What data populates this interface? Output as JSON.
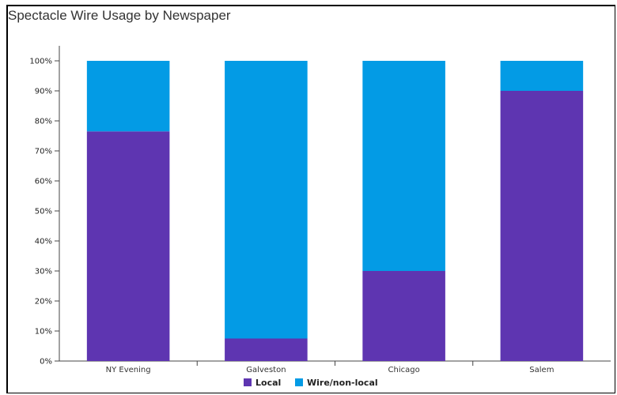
{
  "chart_data": {
    "type": "bar",
    "stacked": true,
    "title": "Spectacle Wire Usage by Newspaper",
    "categories": [
      "NY Evening",
      "Galveston",
      "Chicago",
      "Salem"
    ],
    "series": [
      {
        "name": "Local",
        "color": "#5e35b1",
        "values": [
          76.5,
          7.5,
          30,
          90
        ]
      },
      {
        "name": "Wire/non-local",
        "color": "#039be5",
        "values": [
          23.5,
          92.5,
          70,
          10
        ]
      }
    ],
    "ylim": [
      0,
      100
    ],
    "yticks": [
      "0%",
      "10%",
      "20%",
      "30%",
      "40%",
      "50%",
      "60%",
      "70%",
      "80%",
      "90%",
      "100%"
    ],
    "legend_position": "bottom-center",
    "grid": false
  }
}
